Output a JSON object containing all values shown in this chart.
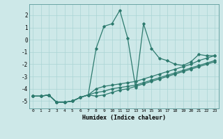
{
  "xlabel": "Humidex (Indice chaleur)",
  "ylabel": "",
  "bg_color": "#cde8e8",
  "grid_color": "#aad4d4",
  "line_color": "#2d7a6e",
  "xlim": [
    -0.5,
    23.5
  ],
  "ylim": [
    -5.6,
    2.9
  ],
  "xticks": [
    0,
    1,
    2,
    3,
    4,
    5,
    6,
    7,
    8,
    9,
    10,
    11,
    12,
    13,
    14,
    15,
    16,
    17,
    18,
    19,
    20,
    21,
    22,
    23
  ],
  "yticks": [
    -5,
    -4,
    -3,
    -2,
    -1,
    0,
    1,
    2
  ],
  "series1_x": [
    0,
    1,
    2,
    3,
    4,
    5,
    6,
    7,
    8,
    9,
    10,
    11,
    12,
    13,
    14,
    15,
    16,
    17,
    18,
    19,
    20,
    21,
    22,
    23
  ],
  "series1_y": [
    -4.6,
    -4.6,
    -4.5,
    -5.1,
    -5.1,
    -5.0,
    -4.7,
    -4.5,
    -0.7,
    1.1,
    1.3,
    2.4,
    0.1,
    -3.9,
    1.3,
    -0.7,
    -1.5,
    -1.7,
    -2.0,
    -2.1,
    -1.8,
    -1.2,
    -1.3,
    -1.3
  ],
  "series2_x": [
    0,
    1,
    2,
    3,
    4,
    5,
    6,
    7,
    8,
    9,
    10,
    11,
    12,
    13,
    14,
    15,
    16,
    17,
    18,
    19,
    20,
    21,
    22,
    23
  ],
  "series2_y": [
    -4.6,
    -4.6,
    -4.5,
    -5.1,
    -5.1,
    -5.0,
    -4.7,
    -4.5,
    -4.3,
    -4.2,
    -4.0,
    -3.9,
    -3.8,
    -3.7,
    -3.5,
    -3.3,
    -3.1,
    -2.9,
    -2.7,
    -2.5,
    -2.3,
    -2.1,
    -1.9,
    -1.7
  ],
  "series3_x": [
    0,
    1,
    2,
    3,
    4,
    5,
    6,
    7,
    8,
    9,
    10,
    11,
    12,
    13,
    14,
    15,
    16,
    17,
    18,
    19,
    20,
    21,
    22,
    23
  ],
  "series3_y": [
    -4.6,
    -4.6,
    -4.5,
    -5.1,
    -5.1,
    -5.0,
    -4.7,
    -4.5,
    -4.0,
    -3.8,
    -3.7,
    -3.6,
    -3.5,
    -3.4,
    -3.2,
    -3.0,
    -2.8,
    -2.6,
    -2.4,
    -2.2,
    -2.0,
    -1.7,
    -1.5,
    -1.3
  ],
  "series4_x": [
    0,
    1,
    2,
    3,
    4,
    5,
    6,
    7,
    8,
    9,
    10,
    11,
    12,
    13,
    14,
    15,
    16,
    17,
    18,
    19,
    20,
    21,
    22,
    23
  ],
  "series4_y": [
    -4.6,
    -4.6,
    -4.5,
    -5.1,
    -5.1,
    -5.0,
    -4.7,
    -4.5,
    -4.6,
    -4.5,
    -4.3,
    -4.1,
    -4.0,
    -3.8,
    -3.6,
    -3.4,
    -3.2,
    -3.0,
    -2.8,
    -2.6,
    -2.4,
    -2.2,
    -2.0,
    -1.8
  ]
}
